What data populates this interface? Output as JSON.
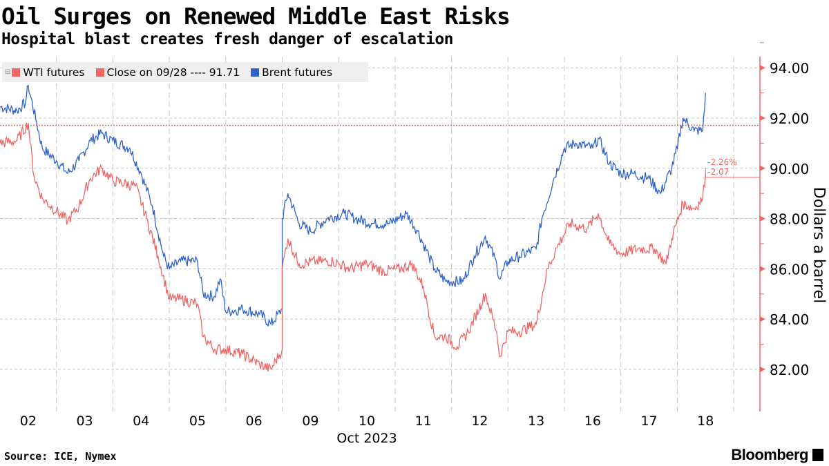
{
  "title": "Oil Surges on Renewed Middle East Risks",
  "subtitle": "Hospital blast creates fresh danger of escalation",
  "source": "Source: ICE, Nymex",
  "brand": "Bloomberg",
  "chart_data": {
    "type": "line",
    "legend": {
      "placement": "top-left",
      "items": [
        "WTI futures",
        "Close on 09/28 ---- 91.71",
        "Brent futures"
      ]
    },
    "ylabel": "Dollars a barrel",
    "xlabel": "Oct 2023",
    "ylim": [
      80.4,
      94.3
    ],
    "y_axis_side": "right",
    "yticks": [
      "82.00",
      "84.00",
      "86.00",
      "88.00",
      "90.00",
      "92.00",
      "94.00"
    ],
    "ytick_values": [
      82,
      84,
      86,
      88,
      90,
      92,
      94
    ],
    "x_days": [
      "02",
      "03",
      "04",
      "05",
      "06",
      "09",
      "10",
      "11",
      "12",
      "13",
      "16",
      "17",
      "18"
    ],
    "grid": true,
    "colors": {
      "wti": "#f06464",
      "brent": "#2f62c8",
      "close": "#f06464",
      "axis": "#f06464"
    },
    "reference_line": {
      "label": "Close on 09/28",
      "value": 91.71
    },
    "annotations": {
      "pct": "-2.26%",
      "abs": "-2.07",
      "value": 89.64
    },
    "series": [
      {
        "name": "Brent futures",
        "points": [
          [
            0,
            92.45
          ],
          [
            0.3,
            92.3
          ],
          [
            0.45,
            92.6
          ],
          [
            0.5,
            93.3
          ],
          [
            0.65,
            91.8
          ],
          [
            0.75,
            90.8
          ],
          [
            1.0,
            90.3
          ],
          [
            1.2,
            89.8
          ],
          [
            1.4,
            90.3
          ],
          [
            1.6,
            91.1
          ],
          [
            1.8,
            91.4
          ],
          [
            2.0,
            91.1
          ],
          [
            2.3,
            90.8
          ],
          [
            2.5,
            89.8
          ],
          [
            2.7,
            88.5
          ],
          [
            2.9,
            86.5
          ],
          [
            3.0,
            86.0
          ],
          [
            3.2,
            86.3
          ],
          [
            3.5,
            86.3
          ],
          [
            3.6,
            85.0
          ],
          [
            3.8,
            84.9
          ],
          [
            3.9,
            85.6
          ],
          [
            4.0,
            84.3
          ],
          [
            4.3,
            84.4
          ],
          [
            4.6,
            84.2
          ],
          [
            4.8,
            83.8
          ],
          [
            5.0,
            84.4
          ],
          [
            5.0,
            88.0
          ],
          [
            5.1,
            89.0
          ],
          [
            5.3,
            87.8
          ],
          [
            5.5,
            87.5
          ],
          [
            5.8,
            88.0
          ],
          [
            6.1,
            88.2
          ],
          [
            6.3,
            88.0
          ],
          [
            6.6,
            87.8
          ],
          [
            6.9,
            87.8
          ],
          [
            7.2,
            88.2
          ],
          [
            7.4,
            87.5
          ],
          [
            7.6,
            86.5
          ],
          [
            7.7,
            86.0
          ],
          [
            7.9,
            85.5
          ],
          [
            8.2,
            85.5
          ],
          [
            8.4,
            86.5
          ],
          [
            8.6,
            87.3
          ],
          [
            8.8,
            86.2
          ],
          [
            8.85,
            85.6
          ],
          [
            9.0,
            86.3
          ],
          [
            9.2,
            86.5
          ],
          [
            9.5,
            86.8
          ],
          [
            9.6,
            88.0
          ],
          [
            9.8,
            89.5
          ],
          [
            10.0,
            90.8
          ],
          [
            10.2,
            91.0
          ],
          [
            10.5,
            90.8
          ],
          [
            10.6,
            91.2
          ],
          [
            10.8,
            90.2
          ],
          [
            11.0,
            89.8
          ],
          [
            11.2,
            89.8
          ],
          [
            11.5,
            89.6
          ],
          [
            11.7,
            89.0
          ],
          [
            11.9,
            90.0
          ],
          [
            12.0,
            90.8
          ],
          [
            12.1,
            92.0
          ],
          [
            12.3,
            91.5
          ],
          [
            12.45,
            91.5
          ],
          [
            12.5,
            93.0
          ]
        ]
      },
      {
        "name": "WTI futures",
        "points": [
          [
            0,
            91.0
          ],
          [
            0.3,
            91.1
          ],
          [
            0.5,
            91.8
          ],
          [
            0.6,
            89.7
          ],
          [
            0.75,
            88.8
          ],
          [
            1.0,
            88.3
          ],
          [
            1.2,
            87.9
          ],
          [
            1.4,
            88.5
          ],
          [
            1.6,
            89.6
          ],
          [
            1.8,
            90.0
          ],
          [
            2.0,
            89.5
          ],
          [
            2.4,
            89.3
          ],
          [
            2.6,
            88.0
          ],
          [
            2.8,
            86.5
          ],
          [
            3.0,
            84.8
          ],
          [
            3.2,
            84.8
          ],
          [
            3.5,
            84.6
          ],
          [
            3.6,
            83.3
          ],
          [
            3.8,
            82.8
          ],
          [
            4.0,
            82.8
          ],
          [
            4.3,
            82.6
          ],
          [
            4.6,
            82.2
          ],
          [
            4.8,
            82.0
          ],
          [
            5.0,
            82.8
          ],
          [
            5.0,
            86.0
          ],
          [
            5.1,
            87.2
          ],
          [
            5.3,
            86.2
          ],
          [
            5.6,
            86.3
          ],
          [
            5.9,
            86.3
          ],
          [
            6.2,
            86.0
          ],
          [
            6.5,
            86.2
          ],
          [
            6.8,
            85.9
          ],
          [
            7.1,
            86.0
          ],
          [
            7.3,
            86.2
          ],
          [
            7.5,
            85.3
          ],
          [
            7.7,
            83.3
          ],
          [
            7.9,
            83.3
          ],
          [
            8.1,
            82.9
          ],
          [
            8.3,
            83.5
          ],
          [
            8.6,
            85.0
          ],
          [
            8.8,
            83.5
          ],
          [
            8.85,
            82.5
          ],
          [
            9.0,
            83.5
          ],
          [
            9.2,
            83.5
          ],
          [
            9.5,
            83.8
          ],
          [
            9.7,
            86.0
          ],
          [
            9.9,
            87.0
          ],
          [
            10.1,
            87.8
          ],
          [
            10.4,
            87.6
          ],
          [
            10.6,
            88.2
          ],
          [
            10.8,
            87.0
          ],
          [
            11.0,
            86.6
          ],
          [
            11.3,
            86.8
          ],
          [
            11.6,
            86.8
          ],
          [
            11.8,
            86.2
          ],
          [
            11.9,
            87.2
          ],
          [
            12.1,
            88.6
          ],
          [
            12.3,
            88.4
          ],
          [
            12.45,
            88.8
          ],
          [
            12.5,
            89.8
          ]
        ]
      }
    ]
  }
}
